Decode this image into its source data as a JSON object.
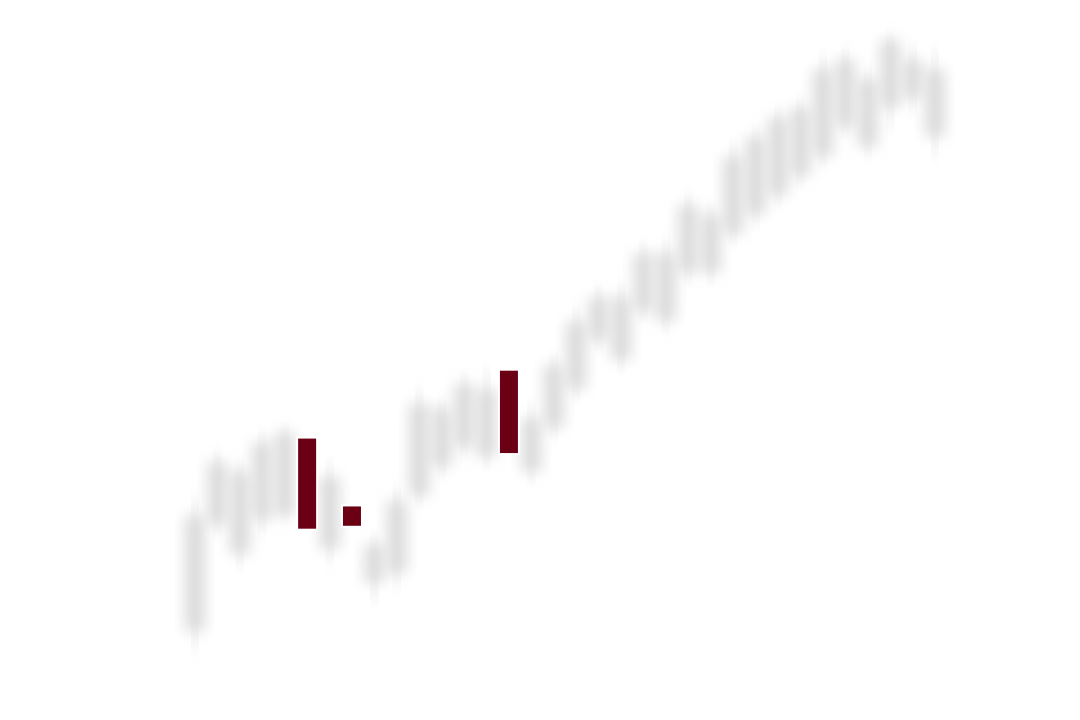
{
  "chart_data": {
    "type": "candlestick",
    "title": "",
    "xlabel": "",
    "ylabel": "",
    "grid": false,
    "legend": "none",
    "ylim": [
      0,
      660
    ],
    "x": [
      1,
      2,
      3,
      4,
      5,
      6,
      7,
      8,
      9,
      10,
      11,
      12,
      13,
      14,
      15,
      16,
      17,
      18,
      19,
      20,
      21,
      22,
      23,
      24,
      25,
      26,
      27,
      28,
      29,
      30,
      31,
      32,
      33,
      34
    ],
    "candles": [
      {
        "open": 50,
        "close": 170,
        "low": 30,
        "high": 190,
        "highlight": false
      },
      {
        "open": 160,
        "close": 225,
        "low": 150,
        "high": 235,
        "highlight": false
      },
      {
        "open": 130,
        "close": 215,
        "low": 115,
        "high": 225,
        "highlight": false
      },
      {
        "open": 165,
        "close": 245,
        "low": 150,
        "high": 255,
        "highlight": false
      },
      {
        "open": 170,
        "close": 255,
        "low": 165,
        "high": 262,
        "highlight": false
      },
      {
        "open": 250,
        "close": 155,
        "low": 145,
        "high": 262,
        "highlight": true
      },
      {
        "open": 210,
        "close": 135,
        "low": 120,
        "high": 225,
        "highlight": false
      },
      {
        "open": 180,
        "close": 158,
        "low": 150,
        "high": 190,
        "highlight": true
      },
      {
        "open": 140,
        "close": 100,
        "low": 80,
        "high": 150,
        "highlight": false
      },
      {
        "open": 110,
        "close": 185,
        "low": 95,
        "high": 200,
        "highlight": false
      },
      {
        "open": 190,
        "close": 285,
        "low": 180,
        "high": 300,
        "highlight": false
      },
      {
        "open": 220,
        "close": 280,
        "low": 210,
        "high": 290,
        "highlight": false
      },
      {
        "open": 240,
        "close": 305,
        "low": 230,
        "high": 315,
        "highlight": false
      },
      {
        "open": 230,
        "close": 300,
        "low": 220,
        "high": 320,
        "highlight": false
      },
      {
        "open": 320,
        "close": 233,
        "low": 225,
        "high": 330,
        "highlight": true
      },
      {
        "open": 270,
        "close": 215,
        "low": 205,
        "high": 285,
        "highlight": false
      },
      {
        "open": 260,
        "close": 325,
        "low": 250,
        "high": 335,
        "highlight": false
      },
      {
        "open": 300,
        "close": 370,
        "low": 290,
        "high": 385,
        "highlight": false
      },
      {
        "open": 350,
        "close": 395,
        "low": 340,
        "high": 405,
        "highlight": false
      },
      {
        "open": 330,
        "close": 395,
        "low": 320,
        "high": 410,
        "highlight": false
      },
      {
        "open": 380,
        "close": 440,
        "low": 370,
        "high": 450,
        "highlight": false
      },
      {
        "open": 370,
        "close": 440,
        "low": 360,
        "high": 455,
        "highlight": false
      },
      {
        "open": 420,
        "close": 490,
        "low": 410,
        "high": 500,
        "highlight": false
      },
      {
        "open": 420,
        "close": 480,
        "low": 410,
        "high": 490,
        "highlight": false
      },
      {
        "open": 460,
        "close": 540,
        "low": 450,
        "high": 555,
        "highlight": false
      },
      {
        "open": 480,
        "close": 560,
        "low": 470,
        "high": 570,
        "highlight": false
      },
      {
        "open": 500,
        "close": 580,
        "low": 490,
        "high": 590,
        "highlight": false
      },
      {
        "open": 520,
        "close": 590,
        "low": 510,
        "high": 600,
        "highlight": false
      },
      {
        "open": 540,
        "close": 630,
        "low": 530,
        "high": 645,
        "highlight": false
      },
      {
        "open": 570,
        "close": 640,
        "low": 560,
        "high": 650,
        "highlight": false
      },
      {
        "open": 620,
        "close": 550,
        "low": 540,
        "high": 630,
        "highlight": false
      },
      {
        "open": 590,
        "close": 660,
        "low": 570,
        "high": 665,
        "highlight": false
      },
      {
        "open": 600,
        "close": 640,
        "low": 585,
        "high": 655,
        "highlight": false
      },
      {
        "open": 630,
        "close": 560,
        "low": 540,
        "high": 650,
        "highlight": false
      }
    ]
  }
}
